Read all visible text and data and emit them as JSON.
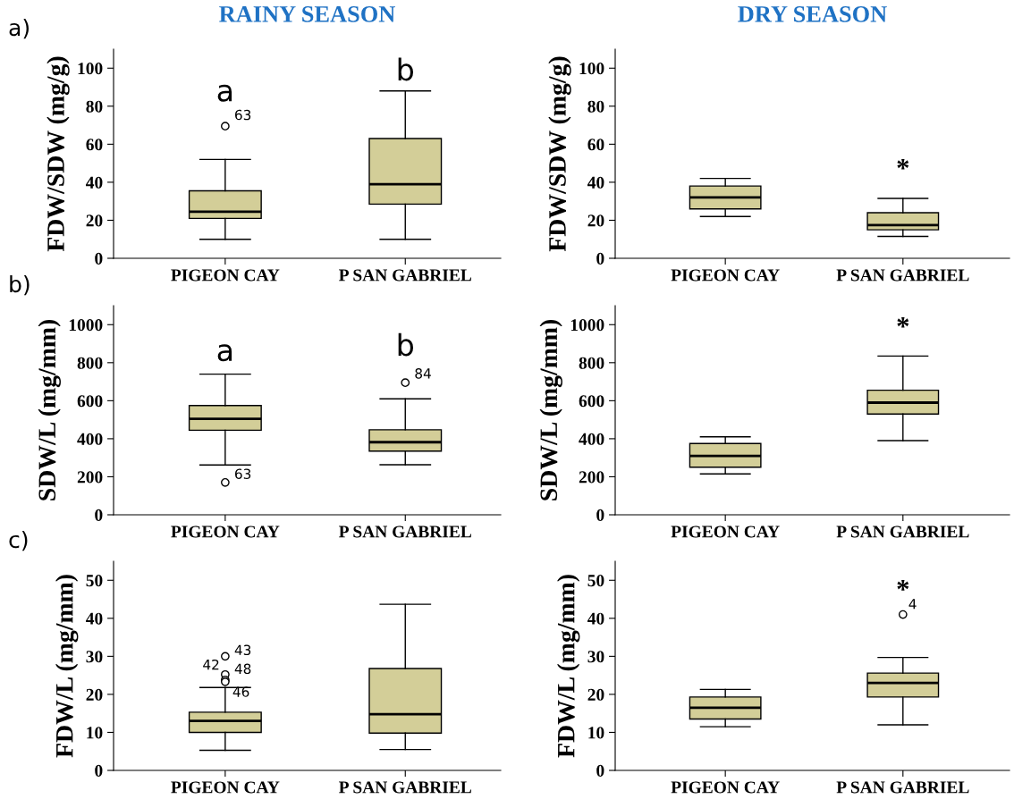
{
  "chart_data": [
    {
      "type": "box",
      "title": "RAINY SEASON",
      "ylabel": "FDW/SDW (mg/g)",
      "categories": [
        "PIGEON CAY",
        "P SAN GABRIEL"
      ],
      "ylim": [
        0,
        110
      ],
      "yticks": [
        0,
        20,
        40,
        60,
        80,
        100
      ],
      "color": "#d3ce98",
      "boxes": [
        {
          "low": 10,
          "q1": 21,
          "median": 24.5,
          "q3": 35.5,
          "high": 52,
          "outliers": [
            69.5
          ]
        },
        {
          "low": 10,
          "q1": 28.5,
          "median": 39,
          "q3": 63,
          "high": 88
        }
      ],
      "annotations": [
        "a)",
        "a",
        "b",
        "63"
      ]
    },
    {
      "type": "box",
      "title": "DRY SEASON",
      "ylabel": "FDW/SDW (mg/g)",
      "categories": [
        "PIGEON CAY",
        "P SAN GABRIEL"
      ],
      "ylim": [
        0,
        110
      ],
      "yticks": [
        0,
        20,
        40,
        60,
        80,
        100
      ],
      "color": "#d3ce98",
      "boxes": [
        {
          "low": 22,
          "q1": 26,
          "median": 32,
          "q3": 38,
          "high": 42
        },
        {
          "low": 11.5,
          "q1": 15,
          "median": 17.5,
          "q3": 24,
          "high": 31.5
        }
      ],
      "annotations": [
        "*"
      ]
    },
    {
      "type": "box",
      "ylabel": "SDW/L (mg/mm)",
      "categories": [
        "PIGEON CAY",
        "P SAN GABRIEL"
      ],
      "ylim": [
        0,
        1100
      ],
      "yticks": [
        0,
        200,
        400,
        600,
        800,
        1000
      ],
      "color": "#d3ce98",
      "boxes": [
        {
          "low": 262,
          "q1": 445,
          "median": 505,
          "q3": 575,
          "high": 740,
          "outliers": [
            170
          ]
        },
        {
          "low": 263,
          "q1": 335,
          "median": 382,
          "q3": 447,
          "high": 610,
          "outliers": [
            695
          ]
        }
      ],
      "annotations": [
        "b)",
        "a",
        "b",
        "63",
        "84"
      ]
    },
    {
      "type": "box",
      "ylabel": "SDW/L (mg/mm)",
      "categories": [
        "PIGEON CAY",
        "P SAN GABRIEL"
      ],
      "ylim": [
        0,
        1100
      ],
      "yticks": [
        0,
        200,
        400,
        600,
        800,
        1000
      ],
      "color": "#d3ce98",
      "boxes": [
        {
          "low": 215,
          "q1": 250,
          "median": 310,
          "q3": 375,
          "high": 410
        },
        {
          "low": 390,
          "q1": 530,
          "median": 590,
          "q3": 655,
          "high": 835
        }
      ],
      "annotations": [
        "*"
      ]
    },
    {
      "type": "box",
      "ylabel": "FDW/L (mg/mm)",
      "categories": [
        "PIGEON CAY",
        "P SAN GABRIEL"
      ],
      "ylim": [
        0,
        55
      ],
      "yticks": [
        0,
        10,
        20,
        30,
        40,
        50
      ],
      "color": "#d3ce98",
      "boxes": [
        {
          "low": 5.3,
          "q1": 10,
          "median": 13,
          "q3": 15.3,
          "high": 21.8,
          "outliers": [
            30,
            25.2,
            23.8,
            23.3
          ]
        },
        {
          "low": 5.5,
          "q1": 9.8,
          "median": 14.8,
          "q3": 26.8,
          "high": 43.7
        }
      ],
      "annotations": [
        "c)",
        "43",
        "42",
        "48",
        "46"
      ]
    },
    {
      "type": "box",
      "ylabel": "FDW/L (mg/mm)",
      "categories": [
        "PIGEON CAY",
        "P SAN GABRIEL"
      ],
      "ylim": [
        0,
        55
      ],
      "yticks": [
        0,
        10,
        20,
        30,
        40,
        50
      ],
      "color": "#d3ce98",
      "boxes": [
        {
          "low": 11.5,
          "q1": 13.5,
          "median": 16.5,
          "q3": 19.3,
          "high": 21.3
        },
        {
          "low": 12,
          "q1": 19.3,
          "median": 23,
          "q3": 25.6,
          "high": 29.7,
          "outliers": [
            41
          ]
        }
      ],
      "annotations": [
        "*",
        "4"
      ]
    }
  ]
}
